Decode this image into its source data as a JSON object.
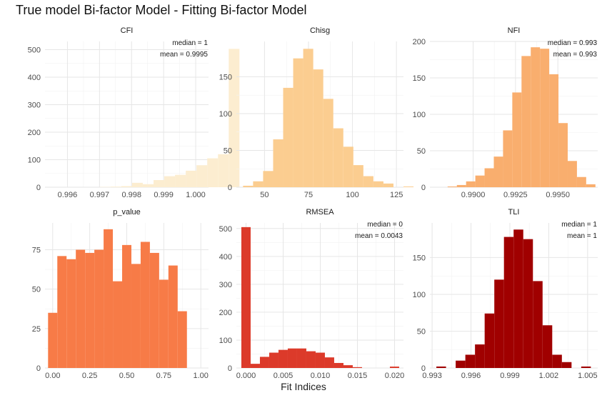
{
  "title": "True model Bi-factor Model - Fitting Bi-factor Model",
  "chart_data": {
    "type": "bar",
    "xlabel": "Fit Indices",
    "ylabel": "",
    "grid": true,
    "panels": [
      {
        "name": "CFI",
        "color": "#fcedd0",
        "xlim": [
          0.9953,
          1.0004
        ],
        "ylim": [
          0,
          530
        ],
        "xticks": [
          0.996,
          0.997,
          0.998,
          0.999,
          1.0
        ],
        "xtick_labels": [
          "0.996",
          "0.997",
          "0.998",
          "0.999",
          "1.000"
        ],
        "yticks": [
          0,
          100,
          200,
          300,
          400,
          500
        ],
        "bin_start": 0.99567,
        "bin_width": 0.000335,
        "counts": [
          0,
          0,
          0,
          0,
          1,
          2,
          4,
          16,
          11,
          26,
          40,
          45,
          60,
          80,
          105,
          120,
          503
        ],
        "annotations": [
          "median =  1",
          "mean = 0.9995"
        ]
      },
      {
        "name": "Chisg",
        "color": "#fbcd90",
        "xlim": [
          34,
          129
        ],
        "ylim": [
          0,
          198
        ],
        "xticks": [
          50,
          75,
          100,
          125
        ],
        "xtick_labels": [
          "50",
          "75",
          "100",
          "125"
        ],
        "yticks": [
          0,
          50,
          100,
          150
        ],
        "bin_start": 37.8,
        "bin_width": 5.7,
        "counts": [
          2,
          8,
          22,
          65,
          135,
          175,
          188,
          160,
          120,
          80,
          55,
          30,
          15,
          8,
          5,
          0,
          1
        ],
        "annotations": []
      },
      {
        "name": "NFI",
        "color": "#f9ae6e",
        "xlim": [
          0.98745,
          0.99735
        ],
        "ylim": [
          0,
          200
        ],
        "xticks": [
          0.99,
          0.9925,
          0.995
        ],
        "xtick_labels": [
          "0.9900",
          "0.9925",
          "0.9950"
        ],
        "yticks": [
          0,
          50,
          100,
          150,
          200
        ],
        "bin_start": 0.98795,
        "bin_width": 0.000545,
        "counts": [
          0,
          1,
          3,
          8,
          16,
          26,
          42,
          78,
          130,
          180,
          192,
          190,
          155,
          88,
          36,
          14,
          4
        ],
        "annotations": [
          "median =  0.993",
          "mean = 0.993"
        ]
      },
      {
        "name": "p_value",
        "color": "#f77b47",
        "xlim": [
          -0.052,
          1.052
        ],
        "ylim": [
          0,
          92
        ],
        "xticks": [
          0,
          0.25,
          0.5,
          0.75,
          1.0
        ],
        "xtick_labels": [
          "0.00",
          "0.25",
          "0.50",
          "0.75",
          "1.00"
        ],
        "yticks": [
          0,
          25,
          50,
          75
        ],
        "bin_start": -0.0313,
        "bin_width": 0.0625,
        "counts": [
          35,
          71,
          69,
          75,
          73,
          75,
          88,
          55,
          78,
          66,
          80,
          73,
          56,
          65,
          36
        ],
        "annotations": []
      },
      {
        "name": "RMSEA",
        "color": "#dc3a2a",
        "xlim": [
          -0.0013,
          0.0212
        ],
        "ylim": [
          0,
          520
        ],
        "xticks": [
          0,
          0.005,
          0.01,
          0.015,
          0.02
        ],
        "xtick_labels": [
          "0.000",
          "0.005",
          "0.010",
          "0.015",
          "0.020"
        ],
        "yticks": [
          0,
          100,
          200,
          300,
          400,
          500
        ],
        "bin_start": -0.00063,
        "bin_width": 0.00125,
        "counts": [
          505,
          15,
          40,
          55,
          65,
          70,
          70,
          60,
          55,
          38,
          18,
          10,
          3,
          0,
          0,
          0,
          5
        ],
        "annotations": [
          "median =  0",
          "mean = 0.0043"
        ]
      },
      {
        "name": "TLI",
        "color": "#a00000",
        "xlim": [
          0.99283,
          1.00578
        ],
        "ylim": [
          0,
          197
        ],
        "xticks": [
          0.993,
          0.996,
          0.999,
          1.002,
          1.005
        ],
        "xtick_labels": [
          "0.993",
          "0.996",
          "0.999",
          "1.002",
          "1.005"
        ],
        "yticks": [
          0,
          50,
          100,
          150
        ],
        "bin_start": 0.99333,
        "bin_width": 0.000745,
        "counts": [
          2,
          0,
          10,
          18,
          32,
          74,
          120,
          178,
          188,
          175,
          118,
          58,
          18,
          8,
          0,
          2
        ],
        "annotations": [
          "median =  1",
          "mean = 1"
        ]
      }
    ]
  }
}
